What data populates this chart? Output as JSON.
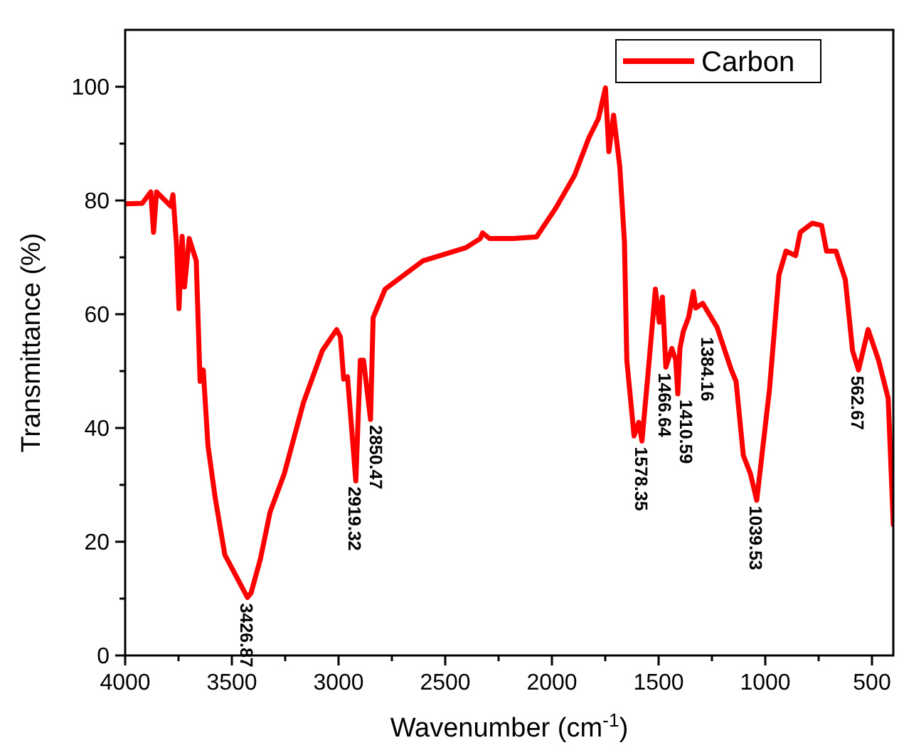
{
  "chart_data": {
    "type": "line",
    "xlabel": "Wavenumber (cm$^{-1}$)",
    "ylabel": "Transmittance (%)",
    "xlim": [
      4000,
      400
    ],
    "ylim": [
      0,
      110
    ],
    "xticks": [
      4000,
      {
        "value": 3750,
        "label": null
      },
      3500,
      {
        "value": 3250,
        "label": null
      },
      3000,
      {
        "value": 2750,
        "label": null
      },
      2500,
      {
        "value": 2250,
        "label": null
      },
      2000,
      {
        "value": 1750,
        "label": null
      },
      1500,
      {
        "value": 1250,
        "label": null
      },
      1000,
      {
        "value": 750,
        "label": null
      },
      500
    ],
    "yticks": [
      0,
      {
        "value": 10,
        "label": null
      },
      20,
      {
        "value": 30,
        "label": null
      },
      40,
      {
        "value": 50,
        "label": null
      },
      60,
      {
        "value": 70,
        "label": null
      },
      80,
      {
        "value": 90,
        "label": null
      },
      100
    ],
    "grid": false,
    "legend": "top right",
    "marker": "none",
    "line_style": "solid",
    "series": [
      {
        "name": "Carbon",
        "color": "#ff0000",
        "x": [
          4000,
          3920,
          3880,
          3867,
          3853,
          3786,
          3776,
          3759,
          3748,
          3733,
          3722,
          3700,
          3667,
          3649,
          3634,
          3612,
          3578,
          3533,
          3427,
          3410,
          3366,
          3321,
          3254,
          3165,
          3076,
          3009,
          2991,
          2976,
          2958,
          2919,
          2898,
          2883,
          2850,
          2838,
          2782,
          2604,
          2403,
          2336,
          2325,
          2292,
          2183,
          2072,
          1983,
          1894,
          1827,
          1782,
          1749,
          1733,
          1711,
          1682,
          1660,
          1649,
          1615,
          1593,
          1578,
          1548,
          1515,
          1497,
          1482,
          1466,
          1438,
          1420,
          1410,
          1400,
          1384,
          1359,
          1337,
          1326,
          1293,
          1226,
          1159,
          1137,
          1103,
          1070,
          1040,
          980,
          936,
          903,
          858,
          836,
          780,
          736,
          713,
          669,
          625,
          591,
          563,
          518,
          469,
          424,
          400
        ],
        "values": [
          79.4,
          79.5,
          81.5,
          74.4,
          81.5,
          79,
          81,
          72,
          61,
          73.7,
          64.8,
          73.3,
          69.4,
          48.2,
          50.2,
          36.9,
          27.7,
          17.7,
          10.2,
          11,
          17,
          25.2,
          32,
          44.4,
          53.6,
          57.3,
          56,
          48.6,
          49,
          30.7,
          51.9,
          51.9,
          41.5,
          59.4,
          64.4,
          69.4,
          71.7,
          73.3,
          74.3,
          73.3,
          73.3,
          73.6,
          78.6,
          84.4,
          91,
          94.4,
          99.8,
          88.6,
          95,
          86,
          72.7,
          51.9,
          38.6,
          41,
          37.7,
          50.2,
          64.4,
          58.6,
          63,
          50.7,
          54,
          52,
          46,
          54,
          57,
          59.5,
          64,
          61.1,
          61.9,
          57.7,
          50.2,
          48.2,
          35.2,
          32,
          27.3,
          46.9,
          66.9,
          71.1,
          70.3,
          74.4,
          76,
          75.6,
          71.1,
          71.1,
          66.1,
          53.6,
          50.2,
          57.3,
          51.9,
          45.2,
          23
        ]
      }
    ],
    "annotations": [
      {
        "text": "3426.87",
        "x": 3427,
        "y": 10.2
      },
      {
        "text": "2919.32",
        "x": 2919,
        "y": 30.7
      },
      {
        "text": "2850.47",
        "x": 2850,
        "y": 41.5
      },
      {
        "text": "1578.35",
        "x": 1578,
        "y": 37.7
      },
      {
        "text": "1466.64",
        "x": 1466,
        "y": 50.7
      },
      {
        "text": "1410.59",
        "x": 1410,
        "y": 46
      },
      {
        "text": "1384.16",
        "x": 1384,
        "y": 57
      },
      {
        "text": "1039.53",
        "x": 1040,
        "y": 27.3
      },
      {
        "text": "562.67",
        "x": 563,
        "y": 50.2
      }
    ]
  }
}
